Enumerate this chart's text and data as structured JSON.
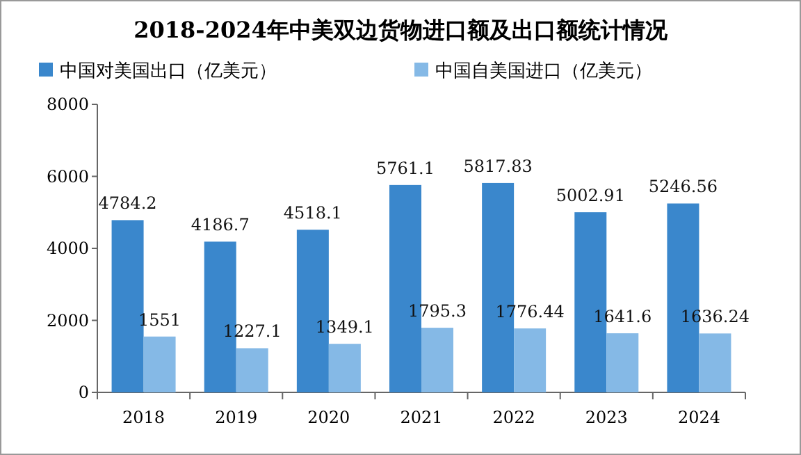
{
  "chart_data": {
    "type": "bar",
    "title": "2018-2024年中美双边货物进口额及出口额统计情况",
    "categories": [
      "2018",
      "2019",
      "2020",
      "2021",
      "2022",
      "2023",
      "2024"
    ],
    "series": [
      {
        "name": "中国对美国出口（亿美元）",
        "color": "#3a87cc",
        "values": [
          4784.2,
          4186.7,
          4518.1,
          5761.1,
          5817.83,
          5002.91,
          5246.56
        ]
      },
      {
        "name": "中国自美国进口（亿美元）",
        "color": "#85b9e6",
        "values": [
          1551,
          1227.1,
          1349.1,
          1795.3,
          1776.44,
          1641.6,
          1636.24
        ]
      }
    ],
    "ylim": [
      0,
      8000
    ],
    "yticks": [
      0,
      2000,
      4000,
      6000,
      8000
    ],
    "legend": "top",
    "data_labels": true
  }
}
